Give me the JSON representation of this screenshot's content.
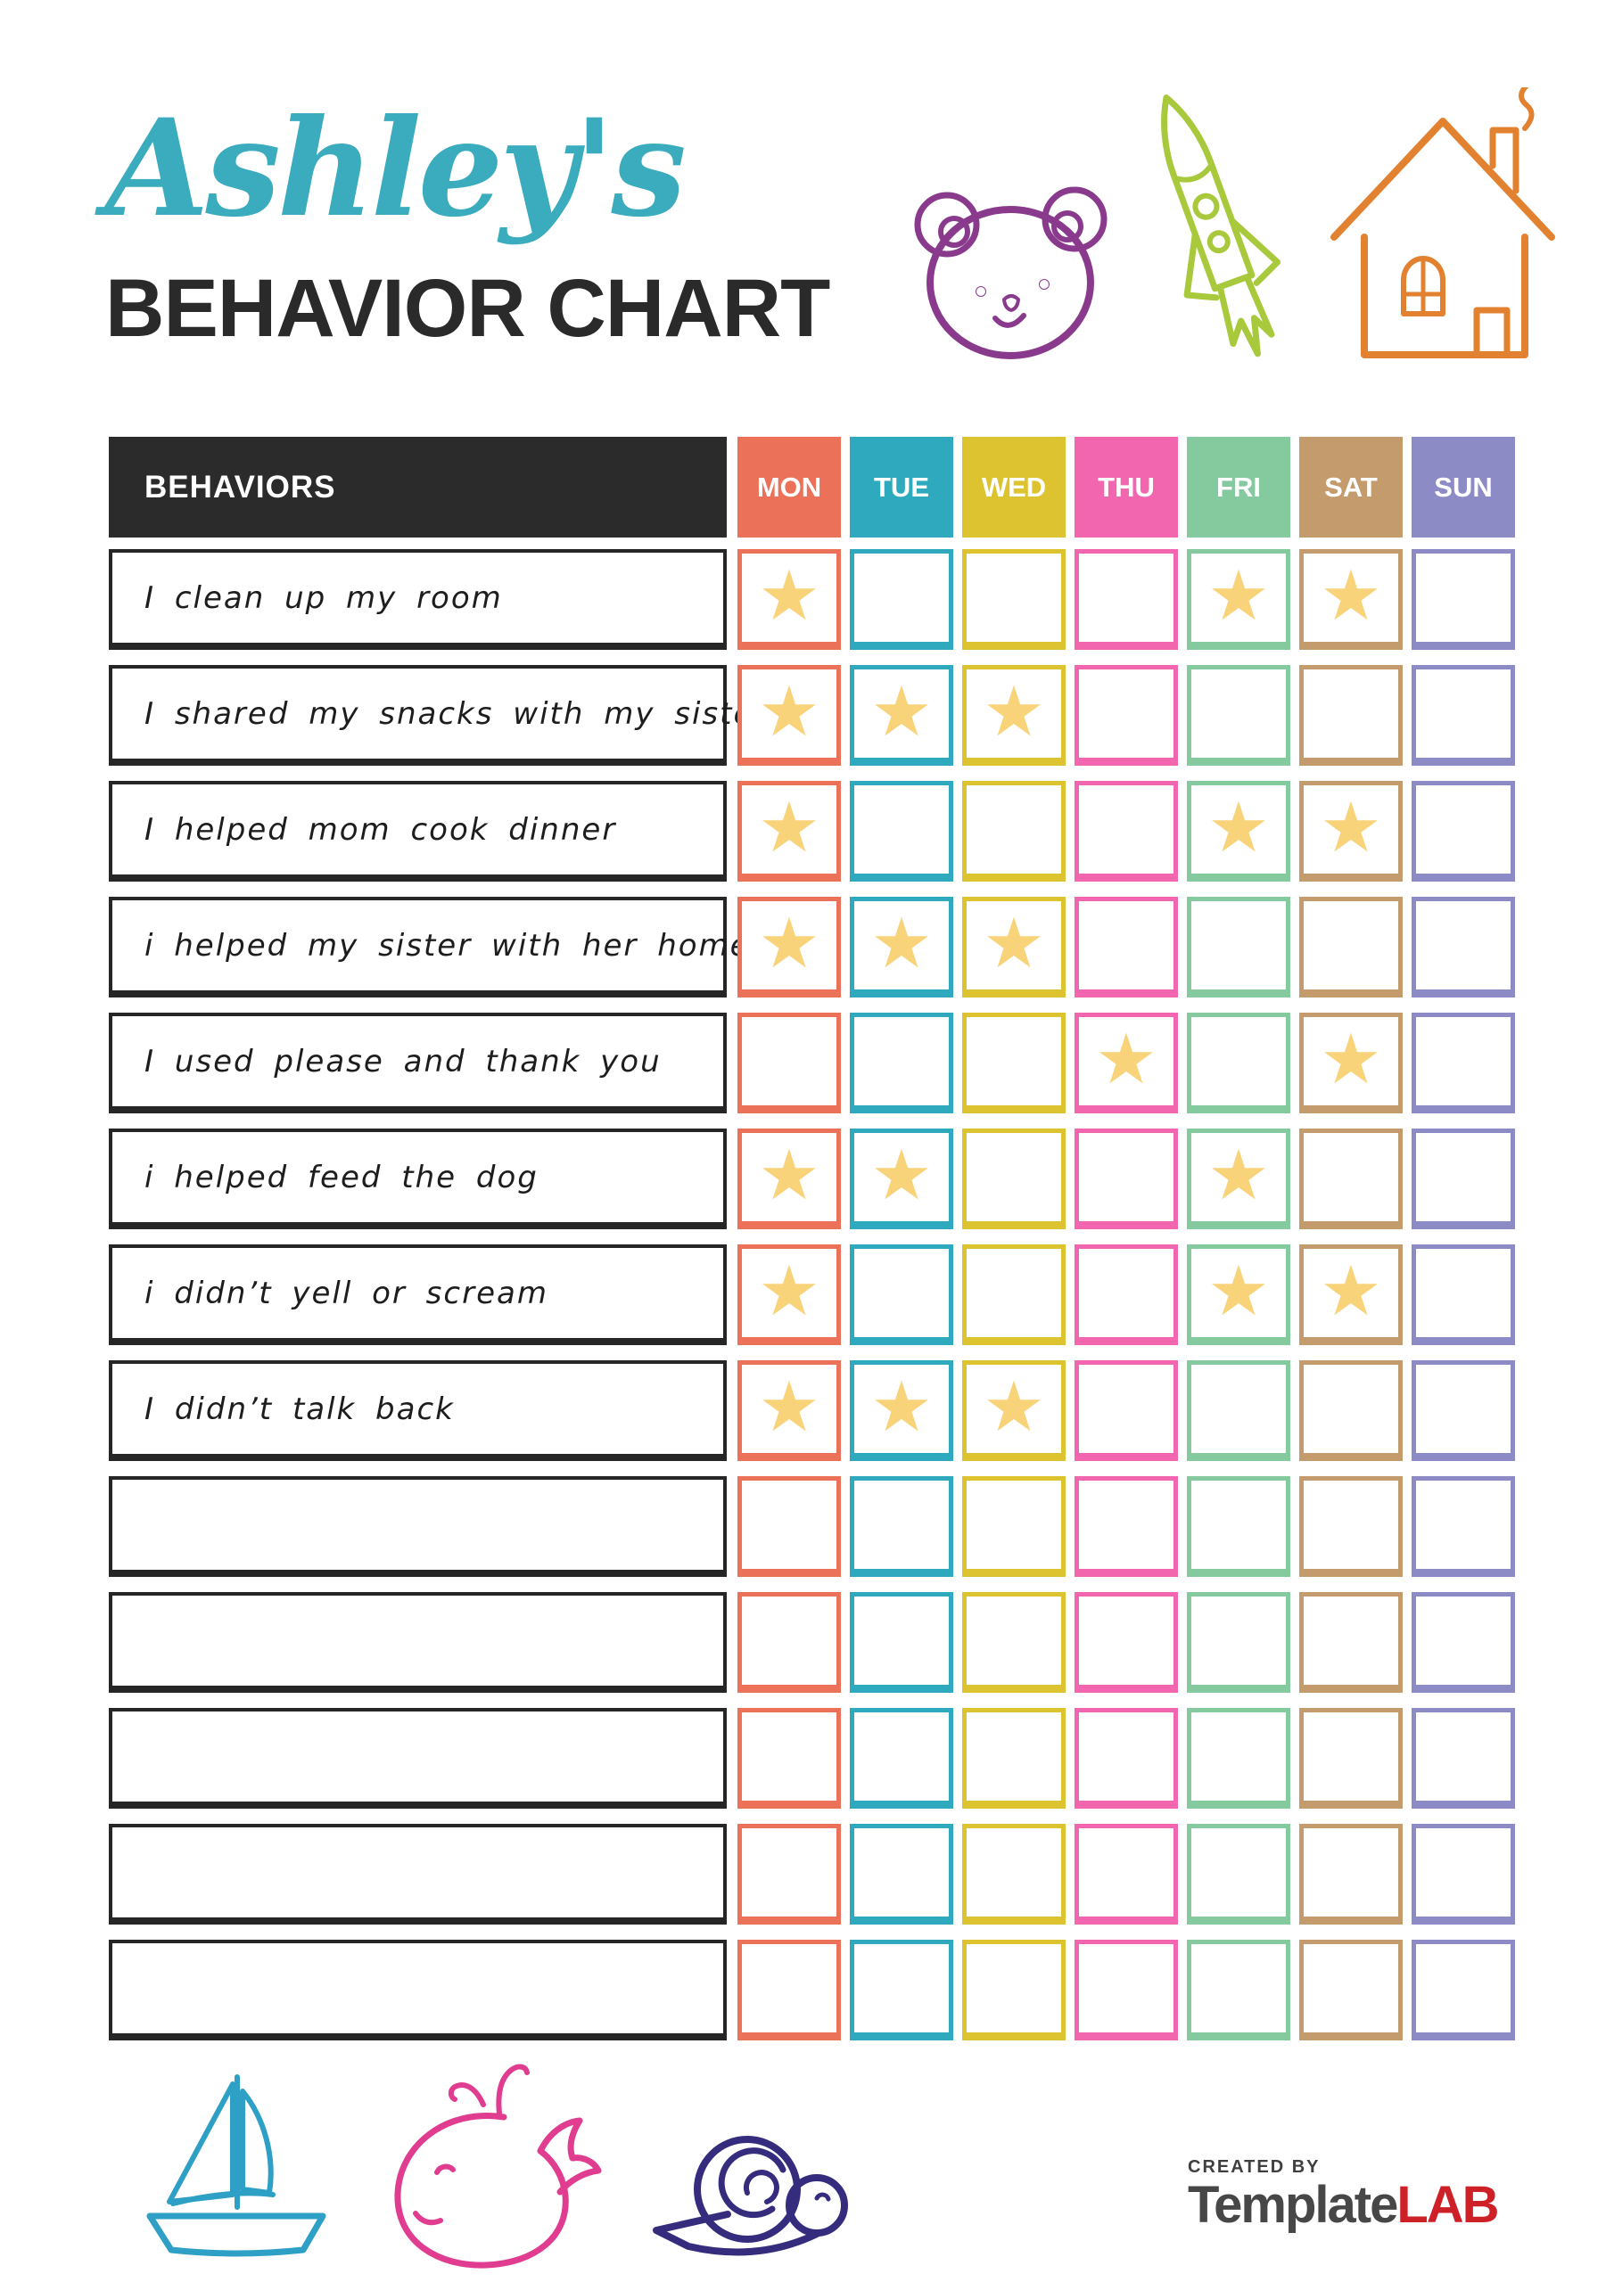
{
  "header": {
    "name_script": "Ashley's",
    "title": "BEHAVIOR CHART",
    "script_color": "#3BACBE",
    "title_color": "#2a2a2a"
  },
  "doodles": {
    "bear_color": "#8A3A8C",
    "rocket_color": "#A8C93C",
    "house_color": "#E2812F",
    "sailboat_color": "#2E9FC5",
    "whale_color": "#E03C90",
    "snail_color": "#362C7E"
  },
  "table": {
    "header_label": "BEHAVIORS",
    "header_bg": "#2b2b2b",
    "star_color": "#F8D37A",
    "star_glyph": "★",
    "days": [
      {
        "label": "MON",
        "color": "#EB7158"
      },
      {
        "label": "TUE",
        "color": "#2FA9BD"
      },
      {
        "label": "WED",
        "color": "#DCC32F"
      },
      {
        "label": "THU",
        "color": "#F266B0"
      },
      {
        "label": "FRI",
        "color": "#84CA9E"
      },
      {
        "label": "SAT",
        "color": "#C49B6D"
      },
      {
        "label": "SUN",
        "color": "#8C8BC6"
      }
    ],
    "rows": [
      {
        "behavior": "I clean up my room",
        "stars": [
          0,
          4,
          5
        ]
      },
      {
        "behavior": "I shared my snacks with my sister",
        "stars": [
          0,
          1,
          2
        ]
      },
      {
        "behavior": "I helped mom cook dinner",
        "stars": [
          0,
          4,
          5
        ]
      },
      {
        "behavior": "i helped my sister with her homework",
        "stars": [
          0,
          1,
          2
        ]
      },
      {
        "behavior": "I used please and thank you",
        "stars": [
          3,
          5
        ]
      },
      {
        "behavior": "i helped feed the dog",
        "stars": [
          0,
          1,
          4
        ]
      },
      {
        "behavior": "i didn’t yell or scream",
        "stars": [
          0,
          4,
          5
        ]
      },
      {
        "behavior": "I didn’t talk back",
        "stars": [
          0,
          1,
          2
        ]
      },
      {
        "behavior": "",
        "stars": []
      },
      {
        "behavior": "",
        "stars": []
      },
      {
        "behavior": "",
        "stars": []
      },
      {
        "behavior": "",
        "stars": []
      },
      {
        "behavior": "",
        "stars": []
      }
    ]
  },
  "footer": {
    "created_by": "CREATED BY",
    "brand_primary": "Template",
    "brand_accent": "LAB",
    "brand_primary_color": "#474747",
    "brand_accent_color": "#CE2127"
  }
}
